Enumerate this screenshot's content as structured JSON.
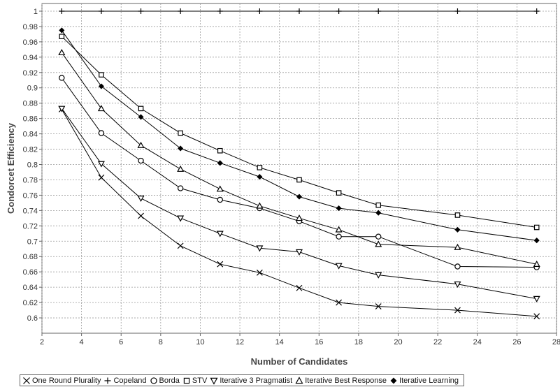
{
  "chart_data": {
    "type": "line",
    "title": "",
    "xlabel": "Number of Candidates",
    "ylabel": "Condorcet Efficiency",
    "xlim": [
      2,
      28
    ],
    "ylim": [
      0.58,
      1.01
    ],
    "xticks": [
      "2",
      "4",
      "6",
      "8",
      "10",
      "12",
      "14",
      "16",
      "18",
      "20",
      "22",
      "24",
      "26",
      "28"
    ],
    "yticks": [
      "0.6",
      "0.62",
      "0.64",
      "0.66",
      "0.68",
      "0.7",
      "0.72",
      "0.74",
      "0.76",
      "0.78",
      "0.8",
      "0.82",
      "0.84",
      "0.86",
      "0.88",
      "0.9",
      "0.92",
      "0.94",
      "0.96",
      "0.98",
      "1"
    ],
    "grid": true,
    "legend_position": "bottom",
    "x": [
      3,
      5,
      7,
      9,
      11,
      13,
      15,
      17,
      19,
      23,
      27
    ],
    "series": [
      {
        "name": "One Round Plurality",
        "marker": "x",
        "color": "#000000",
        "values": [
          0.872,
          0.783,
          0.733,
          0.694,
          0.67,
          0.659,
          0.639,
          0.62,
          0.615,
          0.61,
          0.602
        ]
      },
      {
        "name": "Copeland",
        "marker": "plus",
        "color": "#000000",
        "values": [
          1,
          1,
          1,
          1,
          1,
          1,
          1,
          1,
          1,
          1,
          1
        ]
      },
      {
        "name": "Borda",
        "marker": "circle",
        "color": "#000000",
        "values": [
          0.913,
          0.841,
          0.805,
          0.769,
          0.754,
          0.743,
          0.726,
          0.706,
          0.706,
          0.667,
          0.666
        ]
      },
      {
        "name": "STV",
        "marker": "square",
        "color": "#000000",
        "values": [
          0.967,
          0.917,
          0.873,
          0.841,
          0.818,
          0.796,
          0.78,
          0.763,
          0.747,
          0.734,
          0.718
        ]
      },
      {
        "name": "Iterative 3 Pragmatist",
        "marker": "triangle-down",
        "color": "#000000",
        "values": [
          0.873,
          0.801,
          0.756,
          0.73,
          0.71,
          0.691,
          0.686,
          0.668,
          0.656,
          0.644,
          0.625
        ]
      },
      {
        "name": "Iterative Best Response",
        "marker": "triangle-up",
        "color": "#000000",
        "values": [
          0.946,
          0.873,
          0.825,
          0.794,
          0.768,
          0.746,
          0.73,
          0.715,
          0.696,
          0.692,
          0.67
        ]
      },
      {
        "name": "Iterative Learning",
        "marker": "diamond",
        "color": "#000000",
        "values": [
          0.975,
          0.902,
          0.862,
          0.821,
          0.802,
          0.784,
          0.758,
          0.743,
          0.737,
          0.715,
          0.701
        ]
      }
    ]
  }
}
